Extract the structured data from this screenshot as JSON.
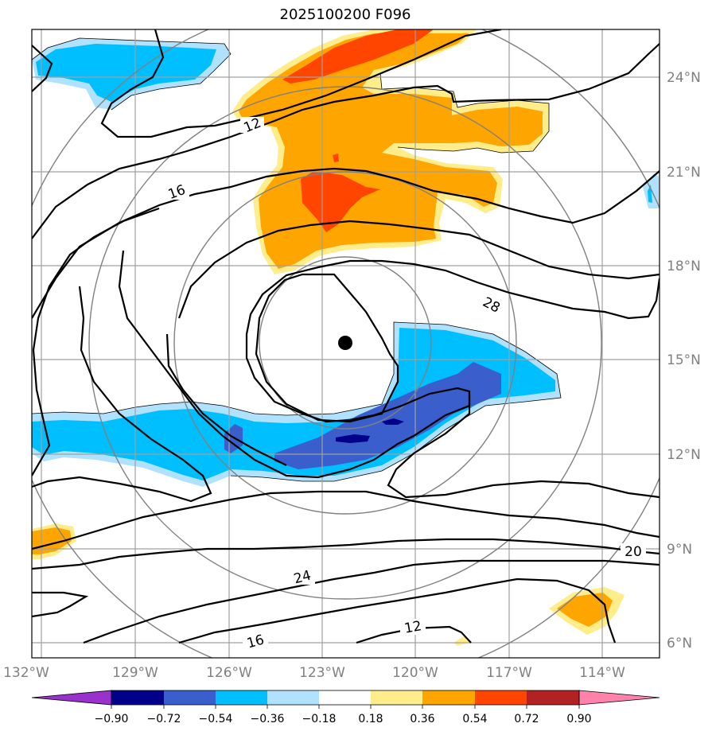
{
  "title": "2025100200 F096",
  "map": {
    "lon_labels": [
      "132°W",
      "129°W",
      "126°W",
      "123°W",
      "120°W",
      "117°W",
      "114°W"
    ],
    "lat_labels": [
      "24°N",
      "21°N",
      "18°N",
      "15°N",
      "12°N",
      "9°N",
      "6°N"
    ],
    "contour_labels": [
      "12",
      "16",
      "28",
      "20",
      "24",
      "16",
      "12"
    ],
    "storm_center": {
      "lon": "122.2°W",
      "lat": "15.5°N"
    }
  },
  "colorbar": {
    "ticks": [
      "−0.90",
      "−0.72",
      "−0.54",
      "−0.36",
      "−0.18",
      "0.18",
      "0.36",
      "0.54",
      "0.72",
      "0.90"
    ],
    "colors": [
      "#9932CC",
      "#00008B",
      "#3A5FCD",
      "#00BFFF",
      "#B0E2FF",
      "#FFFFFF",
      "#FFEC8B",
      "#FFA500",
      "#FF4500",
      "#B22222",
      "#FF82AB"
    ]
  }
}
